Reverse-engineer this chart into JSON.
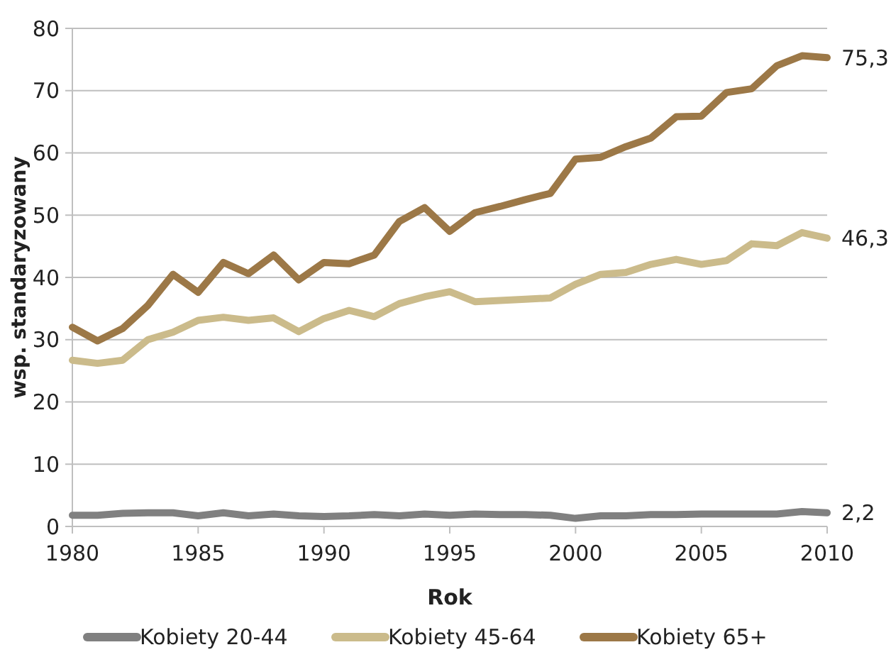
{
  "chart_data": {
    "type": "line",
    "xlabel": "Rok",
    "ylabel": "wsp. standaryzowany",
    "x": [
      1980,
      1981,
      1982,
      1983,
      1984,
      1985,
      1986,
      1987,
      1988,
      1989,
      1990,
      1991,
      1992,
      1993,
      1994,
      1995,
      1996,
      1997,
      1998,
      1999,
      2000,
      2001,
      2002,
      2003,
      2004,
      2005,
      2006,
      2007,
      2008,
      2009,
      2010
    ],
    "series": [
      {
        "name": "Kobiety 20-44",
        "color": "#808080",
        "values": [
          1.8,
          1.8,
          2.1,
          2.2,
          2.2,
          1.7,
          2.2,
          1.7,
          2.0,
          1.7,
          1.6,
          1.7,
          1.9,
          1.7,
          2.0,
          1.8,
          2.0,
          1.9,
          1.9,
          1.8,
          1.3,
          1.7,
          1.7,
          1.9,
          1.9,
          2.0,
          2.0,
          2.0,
          2.0,
          2.4,
          2.2
        ],
        "value_labels": [
          null,
          null,
          null,
          null,
          null,
          null,
          null,
          null,
          null,
          null,
          null,
          null,
          null,
          null,
          null,
          null,
          null,
          null,
          null,
          null,
          null,
          null,
          null,
          null,
          null,
          null,
          null,
          null,
          null,
          null,
          "2,2"
        ]
      },
      {
        "name": "Kobiety 45-64",
        "color": "#cbbb8b",
        "values": [
          26.7,
          26.2,
          26.7,
          30,
          31.2,
          33.1,
          33.6,
          33.1,
          33.5,
          31.3,
          33.4,
          34.7,
          33.7,
          35.8,
          36.9,
          37.7,
          36.1,
          36.3,
          36.5,
          36.7,
          38.9,
          40.5,
          40.8,
          42.1,
          42.9,
          42.1,
          42.7,
          45.4,
          45.1,
          47.2,
          46.3
        ],
        "value_labels": [
          null,
          null,
          null,
          null,
          null,
          null,
          null,
          null,
          null,
          null,
          null,
          null,
          null,
          null,
          null,
          null,
          null,
          null,
          null,
          null,
          null,
          null,
          null,
          null,
          null,
          null,
          null,
          null,
          null,
          null,
          "46,3"
        ]
      },
      {
        "name": "Kobiety 65+",
        "color": "#9c7847",
        "values": [
          32,
          29.8,
          31.8,
          35.5,
          40.5,
          37.6,
          42.4,
          40.6,
          43.6,
          39.6,
          42.4,
          42.2,
          43.6,
          49,
          51.2,
          47.4,
          50.4,
          51.4,
          52.5,
          53.5,
          59,
          59.3,
          61,
          62.4,
          65.8,
          65.9,
          69.7,
          70.3,
          74,
          75.6,
          75.3
        ],
        "value_labels": [
          null,
          null,
          null,
          null,
          null,
          null,
          null,
          null,
          null,
          null,
          null,
          null,
          null,
          null,
          null,
          null,
          null,
          null,
          null,
          null,
          null,
          null,
          null,
          null,
          null,
          null,
          null,
          null,
          null,
          null,
          "75,3"
        ]
      }
    ],
    "xlim": [
      1980,
      2010
    ],
    "xticks": [
      1980,
      1985,
      1990,
      1995,
      2000,
      2005,
      2010
    ],
    "ylim": [
      0,
      80
    ],
    "yticks": [
      0,
      10,
      20,
      30,
      40,
      50,
      60,
      70,
      80
    ],
    "grid": "y",
    "legend": "bottom",
    "marker": "none",
    "line_style": "solid"
  }
}
